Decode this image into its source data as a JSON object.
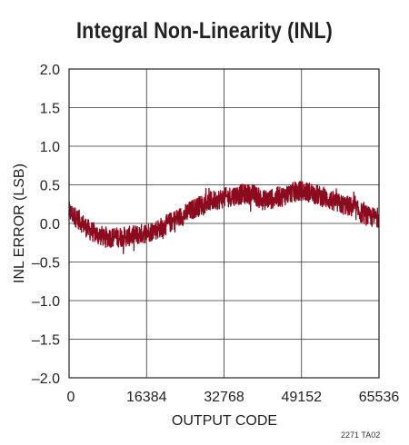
{
  "chart_data": {
    "type": "line",
    "title": "Integral Non-Linearity (INL)",
    "xlabel": "OUTPUT CODE",
    "ylabel": "INL ERROR (LSB)",
    "xlim": [
      0,
      65536
    ],
    "ylim": [
      -2.0,
      2.0
    ],
    "x_ticks": [
      0,
      16384,
      32768,
      49152,
      65536
    ],
    "x_tick_labels": [
      "0",
      "16384",
      "32768",
      "49152",
      "65536"
    ],
    "y_ticks": [
      -2.0,
      -1.5,
      -1.0,
      -0.5,
      0.0,
      0.5,
      1.0,
      1.5,
      2.0
    ],
    "y_tick_labels": [
      "–2.0",
      "–1.5",
      "–1.0",
      "–0.5",
      "0.0",
      "0.5",
      "1.0",
      "1.5",
      "2.0"
    ],
    "grid": true,
    "series": [
      {
        "color": "#8b0a1e",
        "x": [
          0,
          2048,
          4096,
          6144,
          8192,
          10240,
          12288,
          14336,
          16384,
          18432,
          20480,
          22528,
          24576,
          26624,
          28672,
          30720,
          32768,
          34816,
          36864,
          38912,
          40960,
          43008,
          45056,
          47104,
          49152,
          51200,
          53248,
          55296,
          57344,
          59392,
          61440,
          63488,
          65536
        ],
        "y": [
          0.15,
          0.05,
          -0.08,
          -0.15,
          -0.18,
          -0.18,
          -0.17,
          -0.15,
          -0.12,
          -0.08,
          -0.02,
          0.05,
          0.12,
          0.2,
          0.26,
          0.3,
          0.33,
          0.36,
          0.38,
          0.38,
          0.3,
          0.32,
          0.35,
          0.4,
          0.42,
          0.4,
          0.35,
          0.3,
          0.25,
          0.22,
          0.15,
          0.08,
          0.08
        ],
        "noise_band": 0.13
      }
    ]
  },
  "ref_note": "2271 TA02"
}
